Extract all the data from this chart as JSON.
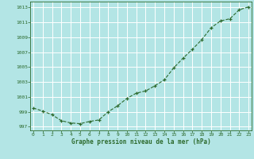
{
  "x": [
    0,
    1,
    2,
    3,
    4,
    5,
    6,
    7,
    8,
    9,
    10,
    11,
    12,
    13,
    14,
    15,
    16,
    17,
    18,
    19,
    20,
    21,
    22,
    23
  ],
  "y": [
    999.5,
    999.1,
    998.6,
    997.8,
    997.5,
    997.4,
    997.7,
    997.9,
    999.0,
    999.8,
    1000.8,
    1001.5,
    1001.8,
    1002.5,
    1003.3,
    1004.9,
    1006.2,
    1007.4,
    1008.7,
    1010.3,
    1011.2,
    1011.5,
    1012.7,
    1013.1
  ],
  "line_color": "#2d6a2d",
  "marker": "+",
  "background_color": "#b3e5e5",
  "grid_color": "#ffffff",
  "xlabel": "Graphe pression niveau de la mer (hPa)",
  "xlabel_color": "#2d6a2d",
  "tick_color": "#2d6a2d",
  "ylim": [
    996.5,
    1013.8
  ],
  "yticks": [
    997,
    999,
    1001,
    1003,
    1005,
    1007,
    1009,
    1011,
    1013
  ],
  "xticks": [
    0,
    1,
    2,
    3,
    4,
    5,
    6,
    7,
    8,
    9,
    10,
    11,
    12,
    13,
    14,
    15,
    16,
    17,
    18,
    19,
    20,
    21,
    22,
    23
  ],
  "xlim": [
    -0.3,
    23.3
  ]
}
